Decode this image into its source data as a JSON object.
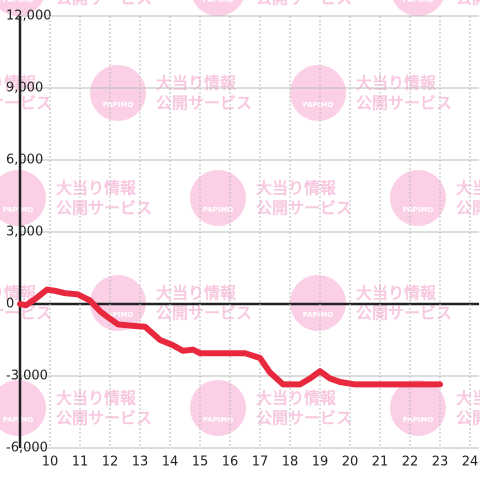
{
  "chart_data": {
    "type": "line",
    "x": [
      9,
      9.2,
      9.5,
      9.9,
      10.17,
      10.5,
      10.93,
      11.33,
      11.67,
      11.93,
      12.27,
      12.67,
      13.17,
      13.67,
      14.07,
      14.43,
      14.77,
      15,
      16.5,
      17,
      17.33,
      17.77,
      18.33,
      18.67,
      19,
      19.33,
      19.67,
      20.17,
      23
    ],
    "series": [
      {
        "color": "#e8283c",
        "values": [
          0,
          -50,
          200,
          600,
          550,
          450,
          400,
          150,
          -300,
          -550,
          -850,
          -900,
          -950,
          -1500,
          -1700,
          -1950,
          -1900,
          -2050,
          -2050,
          -2250,
          -2850,
          -3350,
          -3350,
          -3100,
          -2800,
          -3100,
          -3250,
          -3350,
          -3350
        ]
      }
    ],
    "xlim": [
      9,
      24.3
    ],
    "ylim": [
      -6000,
      12000
    ],
    "xticks": [
      10,
      11,
      12,
      13,
      14,
      15,
      16,
      17,
      18,
      19,
      20,
      21,
      22,
      23,
      24
    ],
    "yticks": [
      {
        "value": -6000,
        "label": "-6,000"
      },
      {
        "value": -3000,
        "label": "-3,000"
      },
      0,
      {
        "value": 3000,
        "label": "3,000"
      },
      {
        "value": 6000,
        "label": "6,000"
      },
      {
        "value": 9000,
        "label": "9,000"
      },
      {
        "value": 12000,
        "label": "12,000"
      }
    ],
    "grid": true,
    "watermark": {
      "logo": "PAPIMO",
      "line1": "大当り情報",
      "line2": "公開サービス"
    }
  }
}
